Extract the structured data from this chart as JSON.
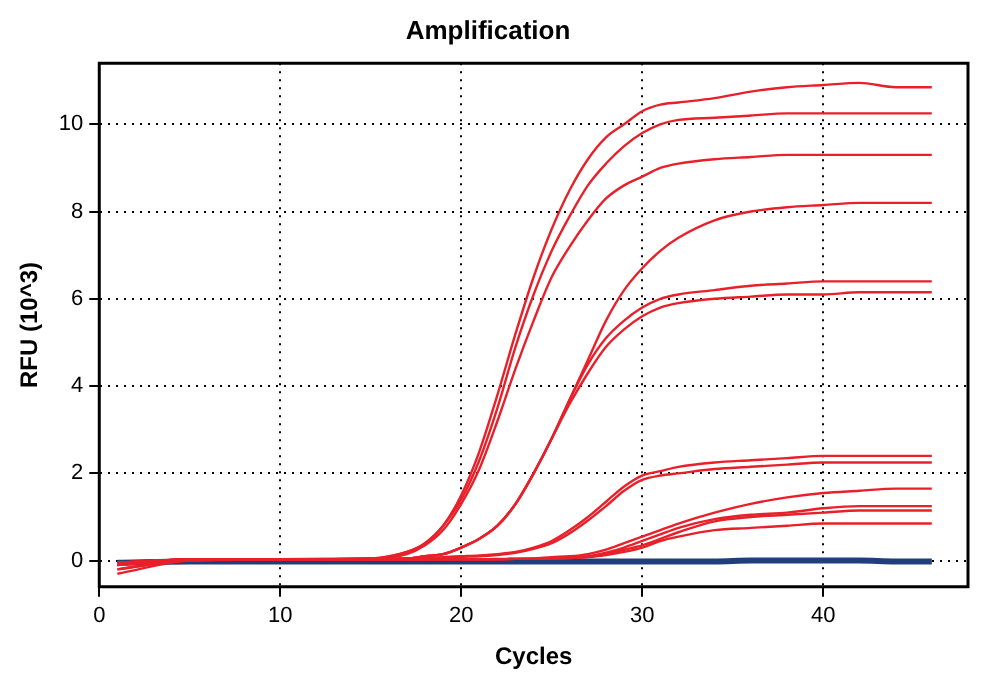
{
  "chart_data": {
    "type": "line",
    "title": "Amplification",
    "xlabel": "Cycles",
    "ylabel": "RFU (10^3)",
    "x": [
      1,
      5,
      10,
      15,
      17,
      18,
      19,
      20,
      21,
      22,
      23,
      24,
      25,
      26,
      27,
      28,
      29,
      30,
      31,
      32,
      34,
      36,
      38,
      40,
      42,
      44,
      46
    ],
    "xlim": [
      0,
      48
    ],
    "xticks": [
      0,
      10,
      20,
      30,
      40
    ],
    "ylim": [
      -0.6,
      11.4
    ],
    "yticks": [
      0,
      2,
      4,
      6,
      8,
      10
    ],
    "grid": true,
    "legend": false,
    "marker": "none",
    "line_style": "solid",
    "series": [
      {
        "color": "#e8202a",
        "values": [
          -0.2,
          0.02,
          0.03,
          0.05,
          0.2,
          0.4,
          0.8,
          1.5,
          2.5,
          3.8,
          5.2,
          6.5,
          7.6,
          8.5,
          9.2,
          9.7,
          10.0,
          10.3,
          10.45,
          10.5,
          10.6,
          10.75,
          10.85,
          10.9,
          10.95,
          10.85,
          10.85
        ]
      },
      {
        "color": "#e8202a",
        "values": [
          -0.1,
          0.03,
          0.03,
          0.05,
          0.2,
          0.4,
          0.8,
          1.4,
          2.3,
          3.5,
          4.9,
          6.1,
          7.1,
          7.9,
          8.6,
          9.1,
          9.5,
          9.8,
          10.0,
          10.1,
          10.15,
          10.2,
          10.25,
          10.25,
          10.25,
          10.25,
          10.25
        ]
      },
      {
        "color": "#e8202a",
        "values": [
          -0.1,
          0.03,
          0.03,
          0.05,
          0.15,
          0.35,
          0.7,
          1.3,
          2.1,
          3.2,
          4.4,
          5.5,
          6.5,
          7.2,
          7.8,
          8.3,
          8.6,
          8.8,
          9.0,
          9.1,
          9.2,
          9.25,
          9.3,
          9.3,
          9.3,
          9.3,
          9.3
        ]
      },
      {
        "color": "#e8202a",
        "values": [
          -0.3,
          0.0,
          0.03,
          0.04,
          0.05,
          0.1,
          0.15,
          0.3,
          0.5,
          0.8,
          1.3,
          2.0,
          2.8,
          3.7,
          4.6,
          5.5,
          6.2,
          6.7,
          7.1,
          7.4,
          7.8,
          8.0,
          8.1,
          8.15,
          8.2,
          8.2,
          8.2
        ]
      },
      {
        "color": "#e8202a",
        "values": [
          -0.2,
          0.0,
          0.03,
          0.04,
          0.05,
          0.1,
          0.15,
          0.3,
          0.5,
          0.8,
          1.3,
          2.0,
          2.8,
          3.7,
          4.5,
          5.1,
          5.5,
          5.8,
          6.0,
          6.1,
          6.2,
          6.3,
          6.35,
          6.4,
          6.4,
          6.4,
          6.4
        ]
      },
      {
        "color": "#e8202a",
        "values": [
          -0.1,
          0.0,
          0.03,
          0.04,
          0.05,
          0.1,
          0.15,
          0.3,
          0.5,
          0.8,
          1.3,
          2.0,
          2.8,
          3.6,
          4.3,
          4.9,
          5.3,
          5.6,
          5.8,
          5.9,
          6.0,
          6.05,
          6.1,
          6.1,
          6.15,
          6.15,
          6.15
        ]
      },
      {
        "color": "#e8202a",
        "values": [
          -0.05,
          0.02,
          0.02,
          0.02,
          0.05,
          0.05,
          0.08,
          0.1,
          0.12,
          0.15,
          0.2,
          0.3,
          0.45,
          0.7,
          1.0,
          1.35,
          1.7,
          1.95,
          2.05,
          2.15,
          2.25,
          2.3,
          2.35,
          2.4,
          2.4,
          2.4,
          2.4
        ]
      },
      {
        "color": "#e8202a",
        "values": [
          -0.05,
          0.02,
          0.02,
          0.02,
          0.04,
          0.05,
          0.07,
          0.09,
          0.1,
          0.13,
          0.18,
          0.27,
          0.4,
          0.63,
          0.92,
          1.25,
          1.6,
          1.85,
          1.95,
          2.0,
          2.1,
          2.15,
          2.2,
          2.25,
          2.25,
          2.25,
          2.25
        ]
      },
      {
        "color": "#e8202a",
        "values": [
          -0.05,
          0.02,
          0.02,
          0.02,
          0.02,
          0.02,
          0.03,
          0.03,
          0.03,
          0.04,
          0.04,
          0.05,
          0.08,
          0.1,
          0.15,
          0.25,
          0.4,
          0.55,
          0.7,
          0.85,
          1.1,
          1.3,
          1.45,
          1.55,
          1.6,
          1.65,
          1.65
        ]
      },
      {
        "color": "#e8202a",
        "values": [
          -0.05,
          0.02,
          0.02,
          0.02,
          0.02,
          0.02,
          0.03,
          0.03,
          0.03,
          0.03,
          0.04,
          0.04,
          0.05,
          0.07,
          0.1,
          0.18,
          0.3,
          0.45,
          0.6,
          0.75,
          0.95,
          1.05,
          1.1,
          1.2,
          1.25,
          1.25,
          1.25
        ]
      },
      {
        "color": "#e8202a",
        "values": [
          -0.05,
          0.02,
          0.02,
          0.02,
          0.02,
          0.02,
          0.03,
          0.03,
          0.03,
          0.03,
          0.04,
          0.04,
          0.05,
          0.06,
          0.09,
          0.15,
          0.25,
          0.35,
          0.5,
          0.65,
          0.9,
          1.0,
          1.05,
          1.1,
          1.15,
          1.15,
          1.15
        ]
      },
      {
        "color": "#e8202a",
        "values": [
          -0.05,
          0.02,
          0.02,
          0.02,
          0.02,
          0.02,
          0.03,
          0.03,
          0.03,
          0.03,
          0.04,
          0.04,
          0.05,
          0.06,
          0.08,
          0.13,
          0.2,
          0.3,
          0.45,
          0.55,
          0.7,
          0.75,
          0.8,
          0.85,
          0.85,
          0.85,
          0.85
        ]
      },
      {
        "color": "#1f3f7a",
        "values": [
          -0.05,
          -0.02,
          -0.02,
          -0.02,
          -0.02,
          -0.02,
          -0.02,
          -0.02,
          -0.02,
          -0.02,
          -0.02,
          -0.02,
          -0.02,
          -0.02,
          -0.02,
          -0.02,
          -0.02,
          -0.02,
          -0.02,
          -0.02,
          -0.02,
          0.0,
          0.0,
          0.0,
          0.0,
          -0.02,
          -0.02
        ]
      }
    ]
  }
}
